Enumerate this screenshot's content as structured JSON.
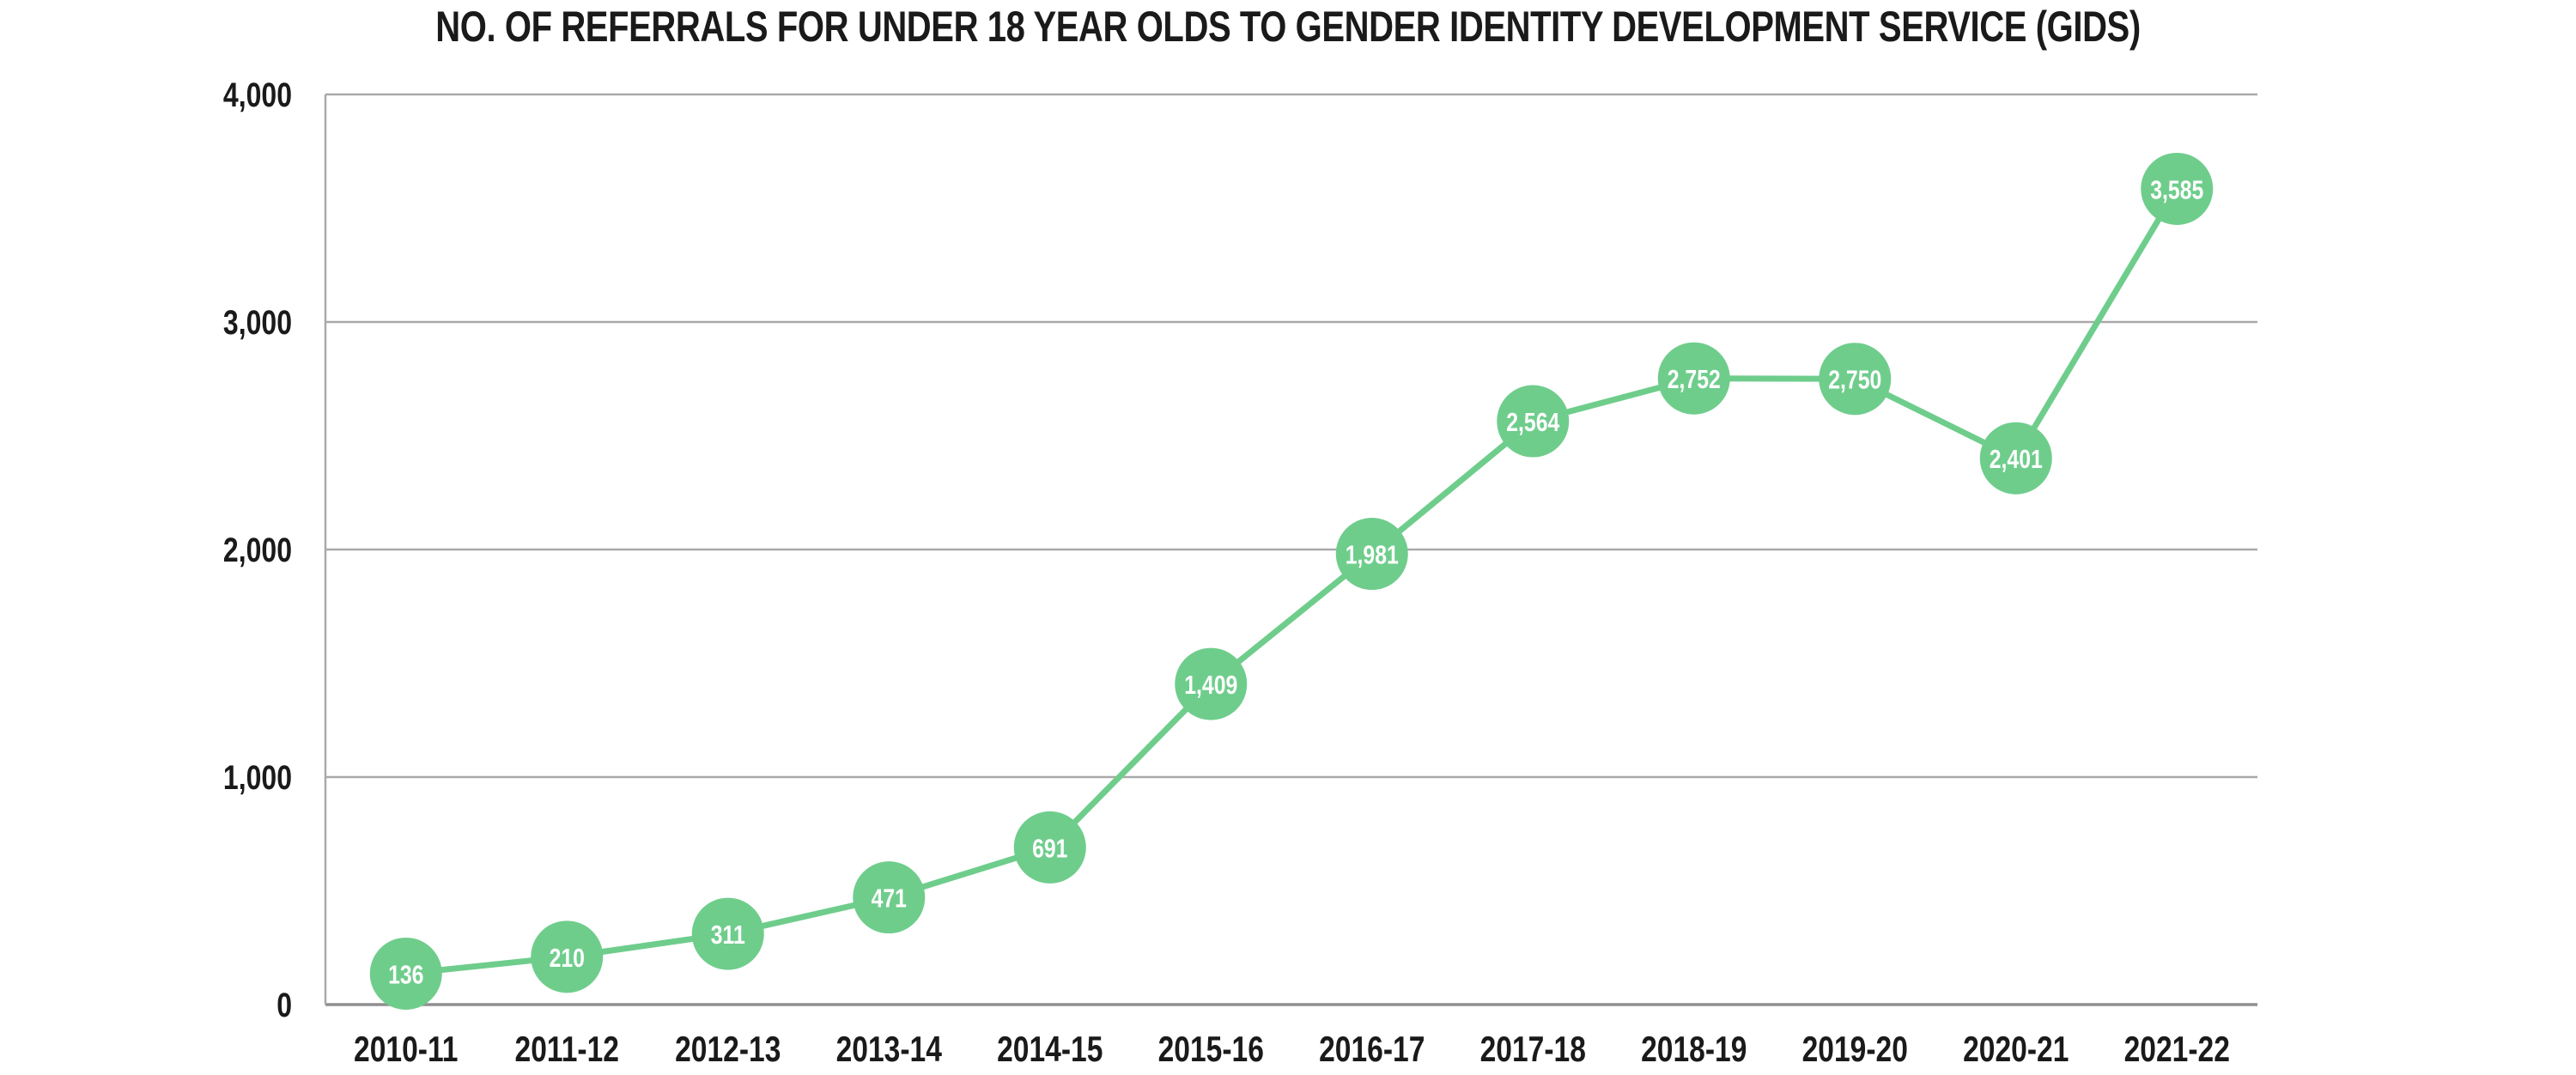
{
  "chart_data": {
    "type": "line",
    "title": "NO. OF REFERRALS FOR UNDER 18 YEAR OLDS TO GENDER IDENTITY DEVELOPMENT SERVICE (GIDS)",
    "categories": [
      "2010-11",
      "2011-12",
      "2012-13",
      "2013-14",
      "2014-15",
      "2015-16",
      "2016-17",
      "2017-18",
      "2018-19",
      "2019-20",
      "2020-21",
      "2021-22"
    ],
    "values": [
      136,
      210,
      311,
      471,
      691,
      1409,
      1981,
      2564,
      2752,
      2750,
      2401,
      3585
    ],
    "value_labels": [
      "136",
      "210",
      "311",
      "471",
      "691",
      "1,409",
      "1,981",
      "2,564",
      "2,752",
      "2,750",
      "2,401",
      "3,585"
    ],
    "xlabel": "",
    "ylabel": "",
    "ylim": [
      0,
      4000
    ],
    "yticks": [
      0,
      1000,
      2000,
      3000,
      4000
    ],
    "ytick_labels": [
      "0",
      "1,000",
      "2,000",
      "3,000",
      "4,000"
    ],
    "grid": true,
    "legend": "none",
    "marker_shape": "circle",
    "colors": {
      "series": "#6FCD8C",
      "marker_text": "#FFFFFF",
      "grid": "#A9A9A9",
      "axis": "#8F8F8F",
      "text": "#1A1A1A",
      "background": "#FFFFFF"
    }
  }
}
